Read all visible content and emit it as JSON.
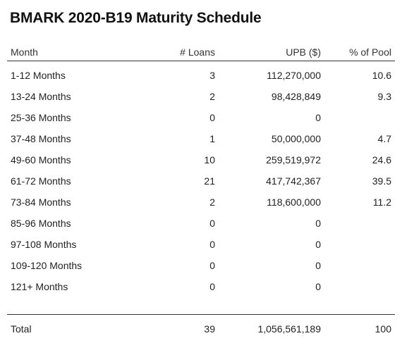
{
  "title": "BMARK 2020-B19 Maturity Schedule",
  "headers": {
    "month": "Month",
    "loans": "# Loans",
    "upb": "UPB ($)",
    "pct": "% of Pool"
  },
  "rows": [
    {
      "month": "1-12 Months",
      "loans": "3",
      "upb": "112,270,000",
      "pct": "10.6"
    },
    {
      "month": "13-24 Months",
      "loans": "2",
      "upb": "98,428,849",
      "pct": "9.3"
    },
    {
      "month": "25-36 Months",
      "loans": "0",
      "upb": "0",
      "pct": ""
    },
    {
      "month": "37-48 Months",
      "loans": "1",
      "upb": "50,000,000",
      "pct": "4.7"
    },
    {
      "month": "49-60 Months",
      "loans": "10",
      "upb": "259,519,972",
      "pct": "24.6"
    },
    {
      "month": "61-72 Months",
      "loans": "21",
      "upb": "417,742,367",
      "pct": "39.5"
    },
    {
      "month": "73-84 Months",
      "loans": "2",
      "upb": "118,600,000",
      "pct": "11.2"
    },
    {
      "month": "85-96 Months",
      "loans": "0",
      "upb": "0",
      "pct": ""
    },
    {
      "month": "97-108 Months",
      "loans": "0",
      "upb": "0",
      "pct": ""
    },
    {
      "month": "109-120 Months",
      "loans": "0",
      "upb": "0",
      "pct": ""
    },
    {
      "month": "121+ Months",
      "loans": "0",
      "upb": "0",
      "pct": ""
    }
  ],
  "total": {
    "month": "Total",
    "loans": "39",
    "upb": "1,056,561,189",
    "pct": "100"
  }
}
